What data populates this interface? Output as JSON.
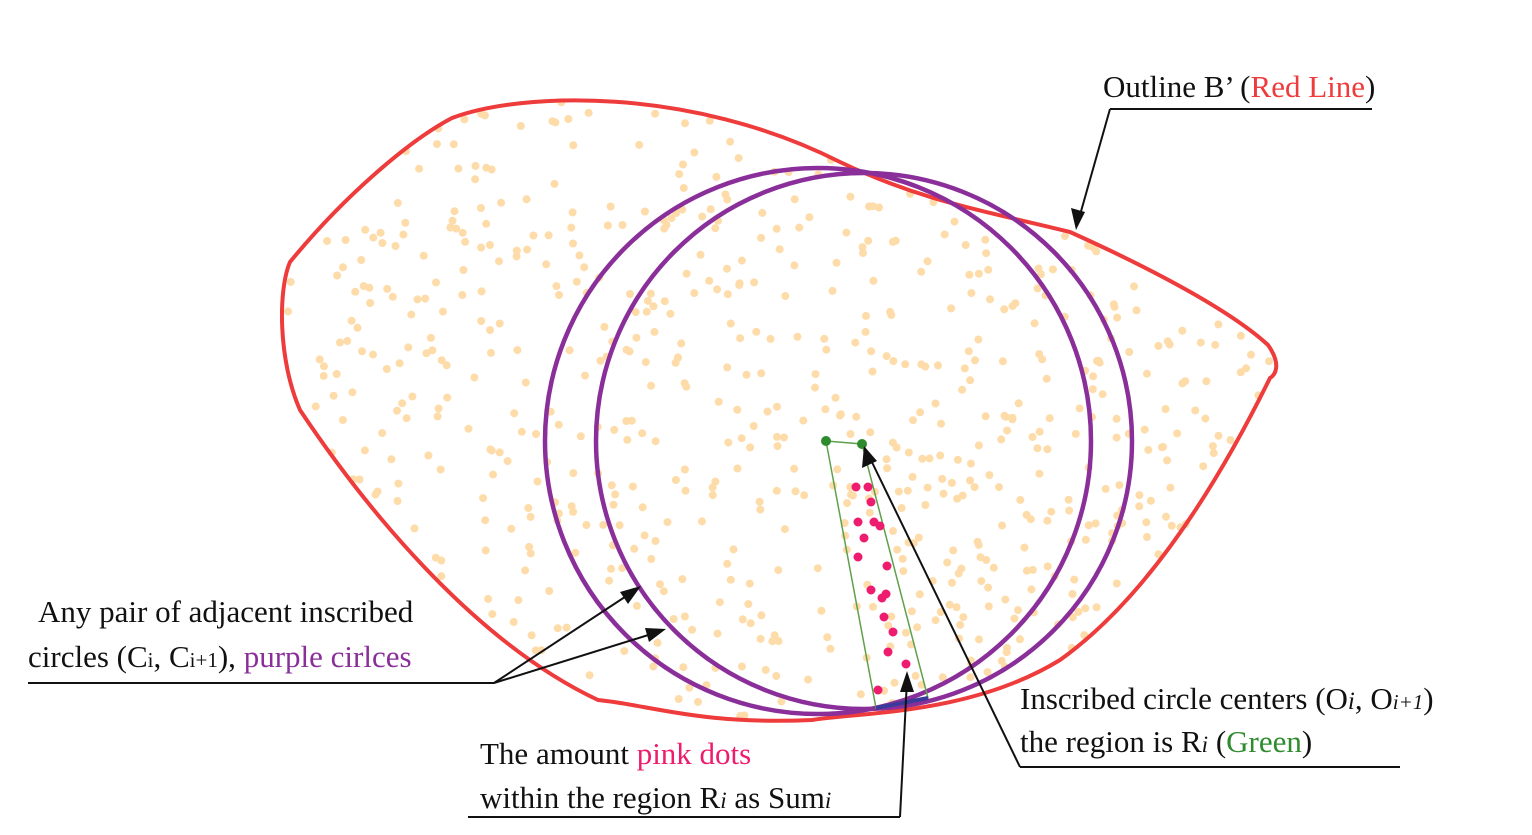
{
  "colors": {
    "outline": "#ee3b3b",
    "circles": "#8a2f9a",
    "region": "#5fa04a",
    "centers": "#2e8b2e",
    "pink_dots": "#ee1c6e",
    "light_dots": "#fddcaa",
    "leader": "#111111"
  },
  "labels": {
    "outline": {
      "text": "Outline B’ (",
      "red_part": "Red Line",
      "close": ")"
    },
    "circles": {
      "line1": "Any pair of adjacent inscribed",
      "line2_a": "circles (C",
      "sub_i": "i",
      "comma": ", C",
      "sub_i1": "i+1",
      "line2_b": "), ",
      "purple_part": "purple cirlces"
    },
    "centers": {
      "line1_a": "Inscribed circle centers (O",
      "sub_i": "i",
      "comma": ", O",
      "sub_i1": "i+1",
      "close": ")",
      "line2_a": "the region is R",
      "sub_r": "i",
      "line2_b": " (",
      "green_part": "Green",
      "line2_c": ")"
    },
    "pink": {
      "line1_a": "The amount ",
      "pink_part": "pink dots",
      "line2_a": "within the region R",
      "sub_r": "i",
      "line2_b": " as Sum",
      "sub_sum": "i"
    }
  }
}
